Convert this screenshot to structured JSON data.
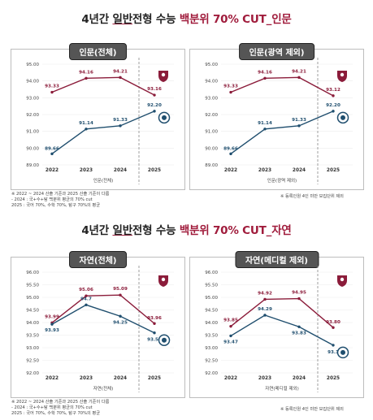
{
  "title1": {
    "pre": "4년간 ",
    "under": "일반",
    "mid": "전형 수능 ",
    "red": "백분위 70% CUT_인문"
  },
  "title2": {
    "pre": "4년간 ",
    "under": "일반",
    "mid": "전형 수능 ",
    "red": "백분위 70% CUT_자연"
  },
  "colors": {
    "crimson": "#8b1c3a",
    "blue": "#1f4e6e",
    "title_red": "#a01c3c",
    "panel_header": "#555555"
  },
  "icons": {
    "red_badge": "crest-badge-icon",
    "blue_badge": "emblem-badge-icon"
  },
  "notes": {
    "humanities": [
      "※ 2022 ~ 2024 산출 기준과 2025 산출 기준이 다름",
      "- 2024 : 국+수+탐 백분위 평균의 70% cut",
      "2025 : 국어 70%, 수학 70%, 탐구 70%의 평균"
    ],
    "humanities_footnote": "※ 등록인원 4인 미만 모집단위 제외",
    "science": [
      "※ 2022 ~ 2024 산출 기준과 2025 산출 기준이 다름",
      "- 2024 : 국+수+탐 백분위 평균의 70% cut",
      "2025 : 국어 70%, 수학 70%, 탐구 70%의 평균"
    ],
    "science_footnote": "※ 등록인원 4인 미만 모집단위 제외"
  },
  "chart_data": [
    {
      "type": "line",
      "title": "인문(전체)",
      "xlabel": "인문(전체)",
      "categories": [
        "2022",
        "2023",
        "2024",
        "2025"
      ],
      "ylim": [
        89.0,
        95.0
      ],
      "yticks": [
        "89.00",
        "90.00",
        "91.00",
        "92.00",
        "93.00",
        "94.00",
        "95.00"
      ],
      "series": [
        {
          "values": [
            93.33,
            94.16,
            94.21,
            93.16
          ],
          "labels": [
            "93.33",
            "94.16",
            "94.21",
            "93.16"
          ]
        },
        {
          "values": [
            89.66,
            91.14,
            91.33,
            92.2
          ],
          "labels": [
            "89.66",
            "91.14",
            "91.33",
            "92.20"
          ]
        }
      ]
    },
    {
      "type": "line",
      "title": "인문(광역 제외)",
      "xlabel": "인문(광역 제외)",
      "categories": [
        "2022",
        "2023",
        "2024",
        "2025"
      ],
      "ylim": [
        89.0,
        95.0
      ],
      "yticks": [
        "89.00",
        "90.00",
        "91.00",
        "92.00",
        "93.00",
        "94.00",
        "95.00"
      ],
      "series": [
        {
          "values": [
            93.33,
            94.16,
            94.21,
            93.12
          ],
          "labels": [
            "93.33",
            "94.16",
            "94.21",
            "93.12"
          ]
        },
        {
          "values": [
            89.66,
            91.14,
            91.33,
            92.2
          ],
          "labels": [
            "89.66",
            "91.14",
            "91.33",
            "92.20"
          ]
        }
      ]
    },
    {
      "type": "line",
      "title": "자연(전체)",
      "xlabel": "자연(전체)",
      "categories": [
        "2022",
        "2023",
        "2024",
        "2025"
      ],
      "ylim": [
        92.0,
        96.0
      ],
      "yticks": [
        "92.00",
        "92.50",
        "93.00",
        "93.50",
        "94.00",
        "94.50",
        "95.00",
        "95.50",
        "96.00"
      ],
      "series": [
        {
          "values": [
            93.99,
            95.06,
            95.09,
            93.96
          ],
          "labels": [
            "93.99",
            "95.06",
            "95.09",
            "93.96"
          ]
        },
        {
          "values": [
            93.93,
            94.7,
            94.25,
            93.59
          ],
          "labels": [
            "93.93",
            "94.7",
            "94.25",
            "93.59"
          ]
        }
      ]
    },
    {
      "type": "line",
      "title": "자연(메디컬 제외)",
      "xlabel": "자연(메디컬 제외)",
      "categories": [
        "2022",
        "2023",
        "2024",
        "2025"
      ],
      "ylim": [
        92.0,
        96.0
      ],
      "yticks": [
        "92.00",
        "92.50",
        "93.00",
        "93.50",
        "94.00",
        "94.50",
        "95.00",
        "95.50",
        "96.00"
      ],
      "series": [
        {
          "values": [
            93.85,
            94.92,
            94.95,
            93.8
          ],
          "labels": [
            "93.85",
            "94.92",
            "94.95",
            "93.80"
          ]
        },
        {
          "values": [
            93.47,
            94.29,
            93.83,
            93.1
          ],
          "labels": [
            "93.47",
            "94.29",
            "93.83",
            "93.1"
          ]
        }
      ]
    }
  ]
}
